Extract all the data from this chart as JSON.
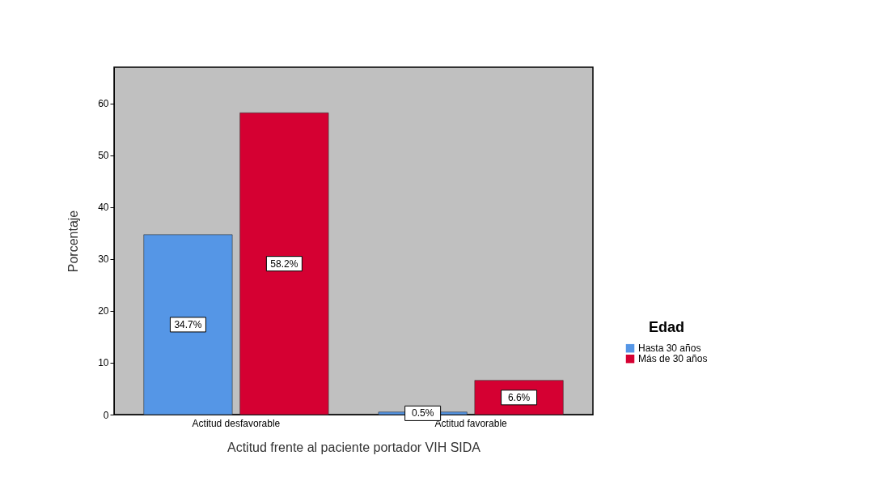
{
  "chart_data": {
    "type": "bar",
    "categories": [
      "Actitud desfavorable",
      "Actitud favorable"
    ],
    "series": [
      {
        "name": "Hasta 30 años",
        "color": "#5596e6",
        "values": [
          34.7,
          0.5
        ],
        "value_labels": [
          "34.7%",
          "0.5%"
        ]
      },
      {
        "name": "Más de 30 años",
        "color": "#d50032",
        "values": [
          58.2,
          6.6
        ],
        "value_labels": [
          "58.2%",
          "6.6%"
        ]
      }
    ],
    "xlabel": "Actitud  frente al paciente portador VIH SIDA",
    "ylabel": "Porcentaje",
    "legend_title": "Edad",
    "legend": "right",
    "ylim": [
      0,
      67
    ],
    "yticks": [
      0,
      10,
      20,
      30,
      40,
      50,
      60
    ]
  }
}
